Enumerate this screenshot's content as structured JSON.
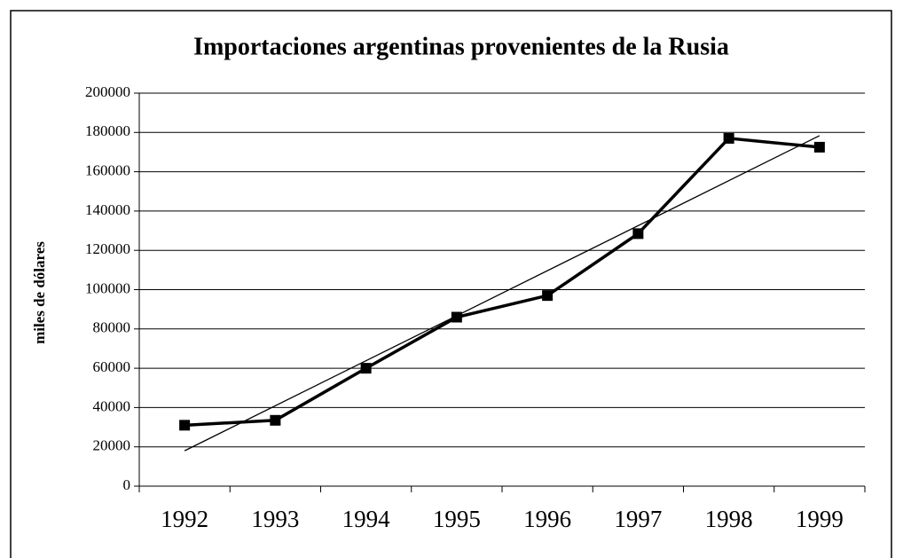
{
  "chart_data": {
    "type": "line",
    "title": "Importaciones argentinas provenientes de la Rusia",
    "y_label": "miles de dólares",
    "categories": [
      "1992",
      "1993",
      "1994",
      "1995",
      "1996",
      "1997",
      "1998",
      "1999"
    ],
    "values": [
      31000,
      33500,
      60000,
      86000,
      97000,
      128500,
      177000,
      172500
    ],
    "color": "#000000",
    "trendline": "linear",
    "ylim": [
      0,
      200000
    ],
    "yticks": [
      0,
      20000,
      40000,
      60000,
      80000,
      100000,
      120000,
      140000,
      160000,
      180000,
      200000
    ],
    "grid": true
  }
}
